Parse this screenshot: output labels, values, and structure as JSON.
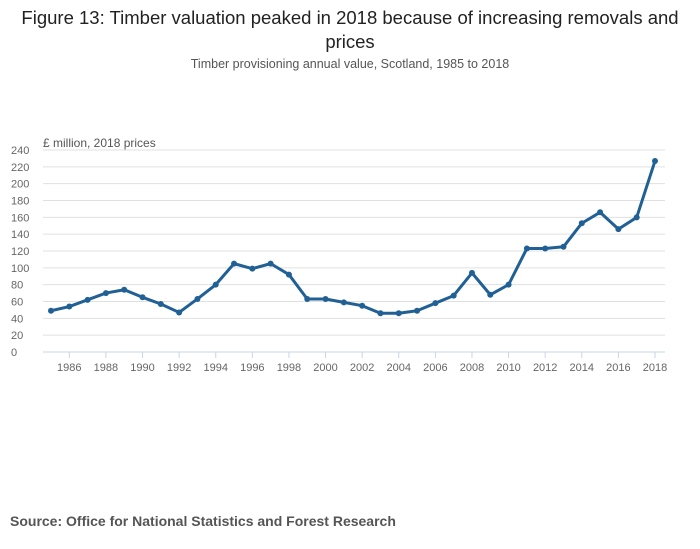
{
  "header": {
    "title": "Figure 13: Timber valuation peaked in 2018 because of increasing removals and prices",
    "subtitle": "Timber provisioning annual value, Scotland, 1985 to 2018"
  },
  "footer": {
    "source": "Source: Office for National Statistics and Forest Research"
  },
  "colors": {
    "line": "#206095",
    "grid": "#e0e0e0",
    "axis": "#c8d6e5"
  },
  "chart_data": {
    "type": "line",
    "title": "Figure 13: Timber valuation peaked in 2018 because of increasing removals and prices",
    "subtitle": "Timber provisioning annual value, Scotland, 1985 to 2018",
    "xlabel": "",
    "ylabel": "£ million, 2018 prices",
    "ylim": [
      0,
      240
    ],
    "xlim": [
      1985,
      2018
    ],
    "yticks": [
      0,
      20,
      40,
      60,
      80,
      100,
      120,
      140,
      160,
      180,
      200,
      220,
      240
    ],
    "xticks": [
      1986,
      1988,
      1990,
      1992,
      1994,
      1996,
      1998,
      2000,
      2002,
      2004,
      2006,
      2008,
      2010,
      2012,
      2014,
      2016,
      2018
    ],
    "grid": true,
    "legend": "none",
    "x": [
      1985,
      1986,
      1987,
      1988,
      1989,
      1990,
      1991,
      1992,
      1993,
      1994,
      1995,
      1996,
      1997,
      1998,
      1999,
      2000,
      2001,
      2002,
      2003,
      2004,
      2005,
      2006,
      2007,
      2008,
      2009,
      2010,
      2011,
      2012,
      2013,
      2014,
      2015,
      2016,
      2017,
      2018
    ],
    "series": [
      {
        "name": "Timber provisioning annual value",
        "values": [
          49,
          54,
          62,
          70,
          74,
          65,
          57,
          47,
          63,
          80,
          105,
          99,
          105,
          92,
          63,
          63,
          59,
          55,
          46,
          46,
          49,
          58,
          67,
          94,
          68,
          80,
          123,
          123,
          125,
          153,
          166,
          146,
          160,
          227
        ]
      }
    ]
  }
}
